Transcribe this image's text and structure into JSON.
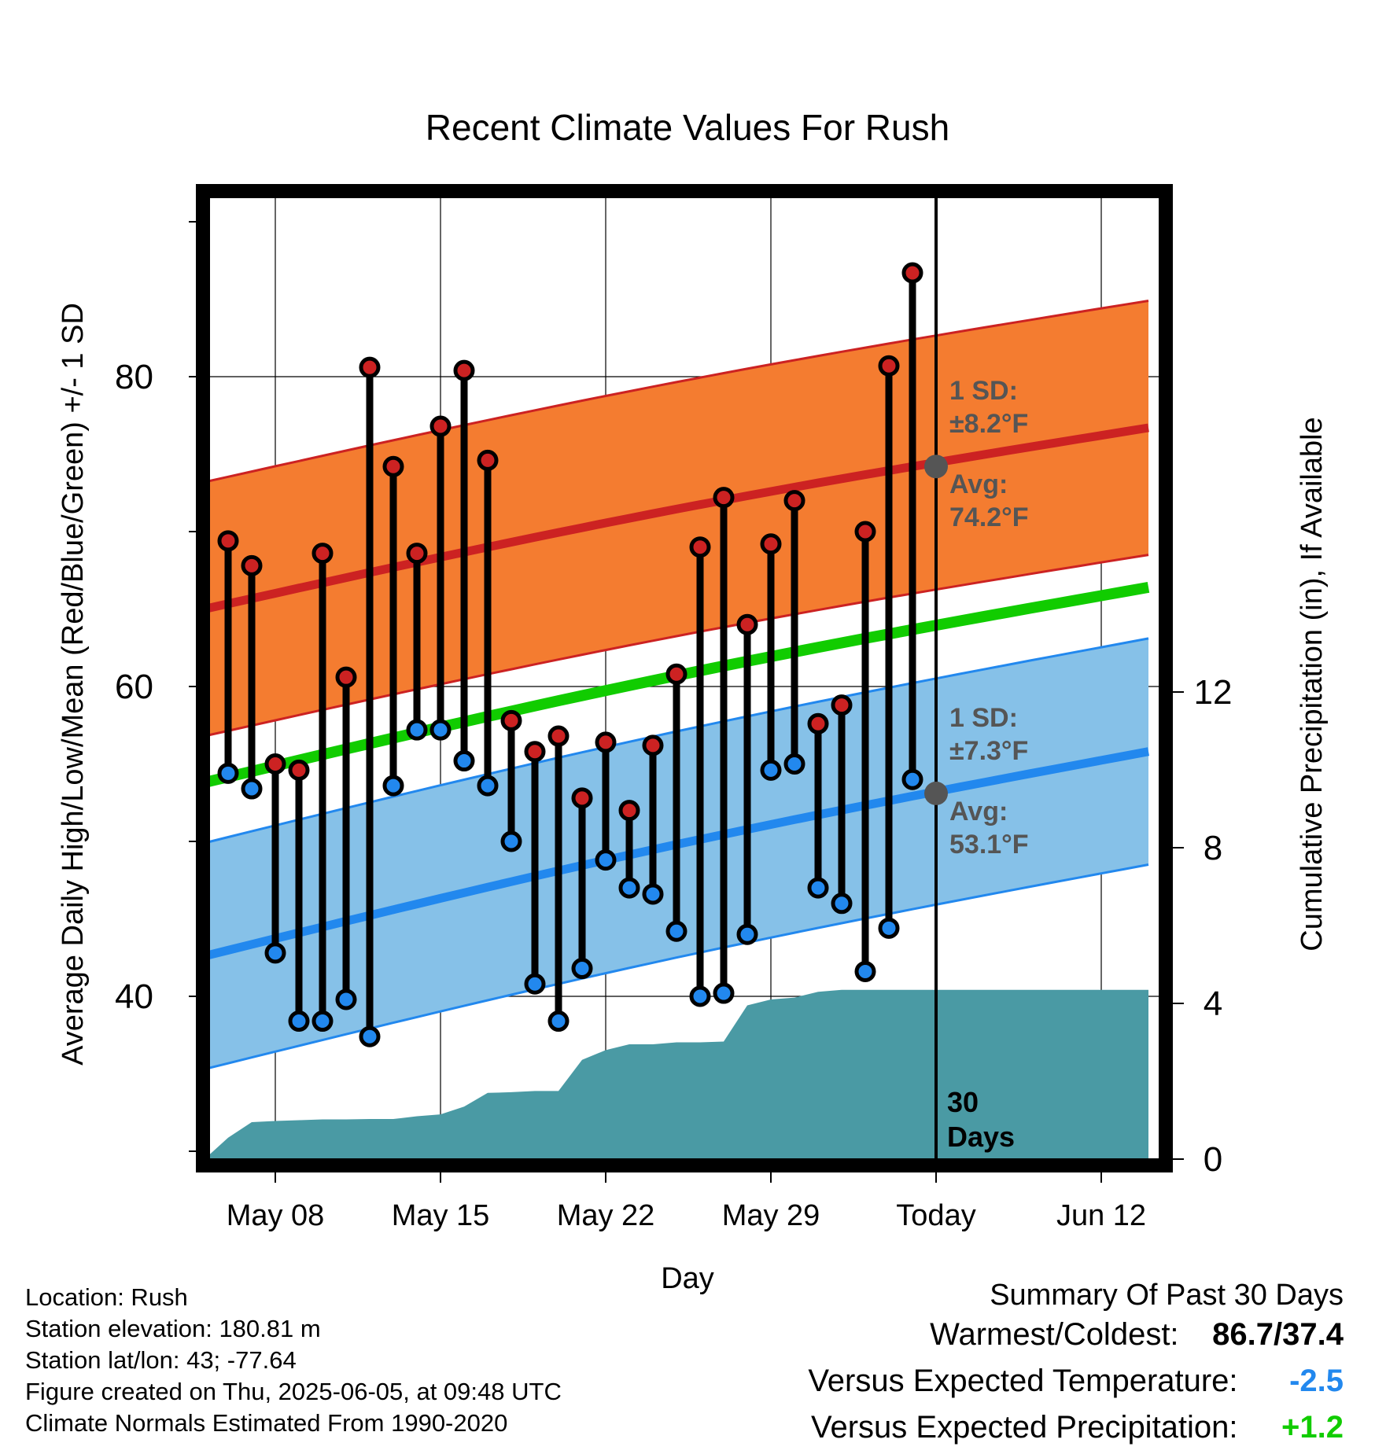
{
  "chart_data": {
    "type": "line",
    "title": "Recent Climate Values For Rush",
    "xlabel": "Day",
    "ylabel": "Average Daily High/Low/Mean (Red/Blue/Green) +/- 1 SD",
    "y2label": "Cumulative Precipitation (in), If Available",
    "x_range": [
      "2025-05-05",
      "2025-06-14"
    ],
    "x_ticks": [
      {
        "date": "2025-05-08",
        "label": "May 08"
      },
      {
        "date": "2025-05-15",
        "label": "May 15"
      },
      {
        "date": "2025-05-22",
        "label": "May 22"
      },
      {
        "date": "2025-05-29",
        "label": "May 29"
      },
      {
        "date": "2025-06-05",
        "label": "Today"
      },
      {
        "date": "2025-06-12",
        "label": "Jun 12"
      }
    ],
    "ylim": [
      29,
      92
    ],
    "y_ticks": [
      40,
      60,
      80
    ],
    "y_minor_ticks": [
      30,
      50,
      70,
      90
    ],
    "y2lim": [
      0,
      30
    ],
    "y2_ticks": [
      0,
      4,
      8,
      12
    ],
    "grid": true,
    "today": "2025-06-05",
    "today_label": "30 Days",
    "observed": {
      "dates": [
        "2025-05-06",
        "2025-05-07",
        "2025-05-08",
        "2025-05-09",
        "2025-05-10",
        "2025-05-11",
        "2025-05-12",
        "2025-05-13",
        "2025-05-14",
        "2025-05-15",
        "2025-05-16",
        "2025-05-17",
        "2025-05-18",
        "2025-05-19",
        "2025-05-20",
        "2025-05-21",
        "2025-05-22",
        "2025-05-23",
        "2025-05-24",
        "2025-05-25",
        "2025-05-26",
        "2025-05-27",
        "2025-05-28",
        "2025-05-29",
        "2025-05-30",
        "2025-05-31",
        "2025-06-01",
        "2025-06-02",
        "2025-06-03",
        "2025-06-04"
      ],
      "highs": [
        69.4,
        67.8,
        55.0,
        54.6,
        68.6,
        60.6,
        80.6,
        74.2,
        68.6,
        76.8,
        80.4,
        74.6,
        57.8,
        55.8,
        56.8,
        52.8,
        56.4,
        52.0,
        56.2,
        60.8,
        69.0,
        72.2,
        64.0,
        69.2,
        72.0,
        57.6,
        58.8,
        70.0,
        80.7,
        86.7
      ],
      "lows": [
        54.4,
        53.4,
        42.8,
        38.4,
        38.4,
        39.8,
        37.4,
        53.6,
        57.2,
        57.2,
        55.2,
        53.6,
        50.0,
        40.8,
        38.4,
        41.8,
        48.8,
        47.0,
        46.6,
        44.2,
        40.0,
        40.2,
        44.0,
        54.6,
        55.0,
        47.0,
        46.0,
        41.6,
        44.4,
        54.0
      ]
    },
    "normals": {
      "avg_high_start": 65.0,
      "avg_high_end": 76.7,
      "avg_low_start": 42.6,
      "avg_low_end": 55.8,
      "avg_mean_start": 53.8,
      "avg_mean_end": 66.4,
      "high_sd": 8.2,
      "low_sd": 7.3
    },
    "precipitation": {
      "dates": [
        "2025-05-05",
        "2025-05-06",
        "2025-05-07",
        "2025-05-08",
        "2025-05-09",
        "2025-05-10",
        "2025-05-11",
        "2025-05-12",
        "2025-05-13",
        "2025-05-14",
        "2025-05-15",
        "2025-05-16",
        "2025-05-17",
        "2025-05-18",
        "2025-05-19",
        "2025-05-20",
        "2025-05-21",
        "2025-05-22",
        "2025-05-23",
        "2025-05-24",
        "2025-05-25",
        "2025-05-26",
        "2025-05-27",
        "2025-05-28",
        "2025-05-29",
        "2025-05-30",
        "2025-05-31",
        "2025-06-01",
        "2025-06-02",
        "2025-06-03",
        "2025-06-04",
        "2025-06-05",
        "2025-06-14"
      ],
      "values": [
        0.0,
        0.55,
        0.95,
        0.98,
        1.0,
        1.02,
        1.02,
        1.03,
        1.03,
        1.1,
        1.15,
        1.35,
        1.7,
        1.72,
        1.75,
        1.75,
        2.55,
        2.8,
        2.95,
        2.95,
        3.0,
        3.0,
        3.02,
        3.95,
        4.1,
        4.15,
        4.3,
        4.35,
        4.35,
        4.35,
        4.35,
        4.35,
        4.35
      ]
    },
    "annotations": {
      "high_sd_label": "1 SD:",
      "high_sd_value": "±8.2°F",
      "high_avg_label": "Avg:",
      "high_avg_value": "74.2°F",
      "low_sd_label": "1 SD:",
      "low_sd_value": "±7.3°F",
      "low_avg_label": "Avg:",
      "low_avg_value": "53.1°F",
      "high_avg_today": 74.2,
      "low_avg_today": 53.1,
      "days_number": "30",
      "days_word": "Days"
    },
    "colors": {
      "high": "#cc2222",
      "low": "#2288ee",
      "mean": "#11cc00",
      "high_band": "#f47c30",
      "low_band": "#86c1e8",
      "precip": "#4a9aa4",
      "annotation": "#555555"
    }
  },
  "footer": {
    "location": "Location: Rush",
    "elevation": "Station elevation: 180.81 m",
    "latlon": "Station lat/lon: 43; -77.64",
    "created": "Figure created on Thu, 2025-06-05, at 09:48 UTC",
    "normals": "Climate Normals Estimated From 1990-2020"
  },
  "summary": {
    "title": "Summary Of Past 30 Days",
    "warm_cold_label": "Warmest/Coldest:",
    "warm_cold_value": "86.7/37.4",
    "temp_label": "Versus Expected Temperature:",
    "temp_value": "-2.5",
    "temp_color": "#2288ee",
    "precip_label": "Versus Expected Precipitation:",
    "precip_value": "+1.2",
    "precip_color": "#11cc00"
  }
}
